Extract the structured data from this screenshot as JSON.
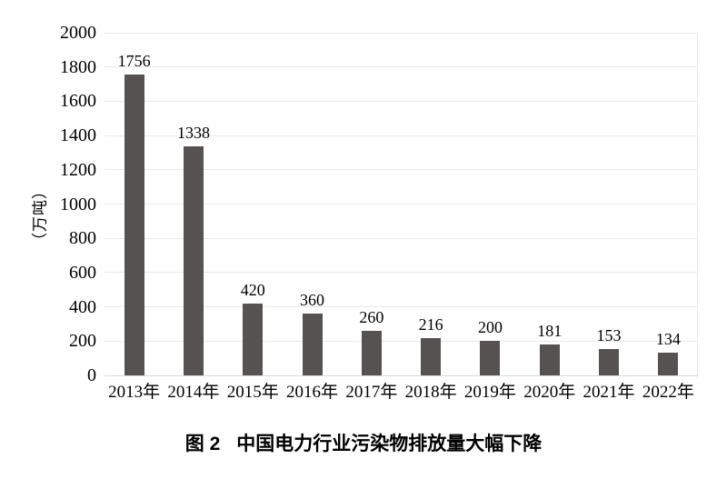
{
  "chart_data": {
    "type": "bar",
    "caption_prefix": "图 2",
    "caption_text": "中国电力行业污染物排放量大幅下降",
    "ylabel": "（万吨）",
    "categories": [
      "2013年",
      "2014年",
      "2015年",
      "2016年",
      "2017年",
      "2018年",
      "2019年",
      "2020年",
      "2021年",
      "2022年"
    ],
    "values": [
      1756,
      1338,
      420,
      360,
      260,
      216,
      200,
      181,
      153,
      134
    ],
    "value_labels": [
      "1756",
      "1338",
      "420",
      "360",
      "260",
      "216",
      "200",
      "181",
      "153",
      "134"
    ],
    "ylim": [
      0,
      2000
    ],
    "y_ticks": [
      0,
      200,
      400,
      600,
      800,
      1000,
      1200,
      1400,
      1600,
      1800,
      2000
    ],
    "grid": "horizontal",
    "legend": "none",
    "colors": {
      "bar": "#575252",
      "gridline": "#e9e9e9",
      "baseline": "#d9d9d9",
      "text": "#000000",
      "background": "#ffffff"
    }
  }
}
